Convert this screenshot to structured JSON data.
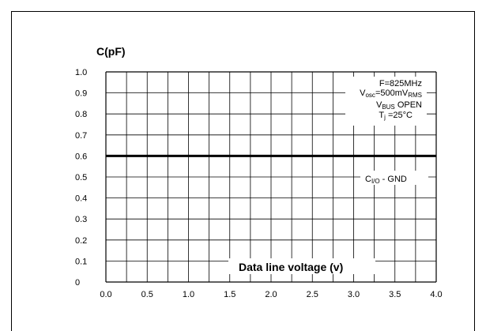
{
  "chart_data": {
    "type": "line",
    "ylabel": "C(pF)",
    "xlabel": "Data line voltage (v)",
    "xlim": [
      0.0,
      4.0
    ],
    "ylim": [
      0,
      1.0
    ],
    "x_ticks": [
      "0.0",
      "0.5",
      "1.0",
      "1.5",
      "2.0",
      "2.5",
      "3.0",
      "3.5",
      "4.0"
    ],
    "y_ticks": [
      "0",
      "0.1",
      "0.2",
      "0.3",
      "0.4",
      "0.5",
      "0.6",
      "0.7",
      "0.8",
      "0.9",
      "1.0"
    ],
    "grid": true,
    "series": [
      {
        "name": "CI/O - GND",
        "x": [
          0.0,
          4.0
        ],
        "y": [
          0.6,
          0.6
        ]
      }
    ],
    "conditions": [
      "F=825MHz",
      "Vosc=500mVRMS",
      "VBUS OPEN",
      "Tj =25°C"
    ],
    "series_label": {
      "main": "C",
      "sub": "I/O",
      "suffix": " - GND"
    },
    "condition_parts": {
      "f": "F=825MHz",
      "vosc_v": "V",
      "vosc_sub": "osc",
      "vosc_mid": "=500mV",
      "vosc_sub2": "RMS",
      "vbus_v": "V",
      "vbus_sub": "BUS",
      "vbus_rest": " OPEN",
      "tj_t": "T",
      "tj_sub": "j",
      "tj_rest": " =25°C"
    }
  }
}
